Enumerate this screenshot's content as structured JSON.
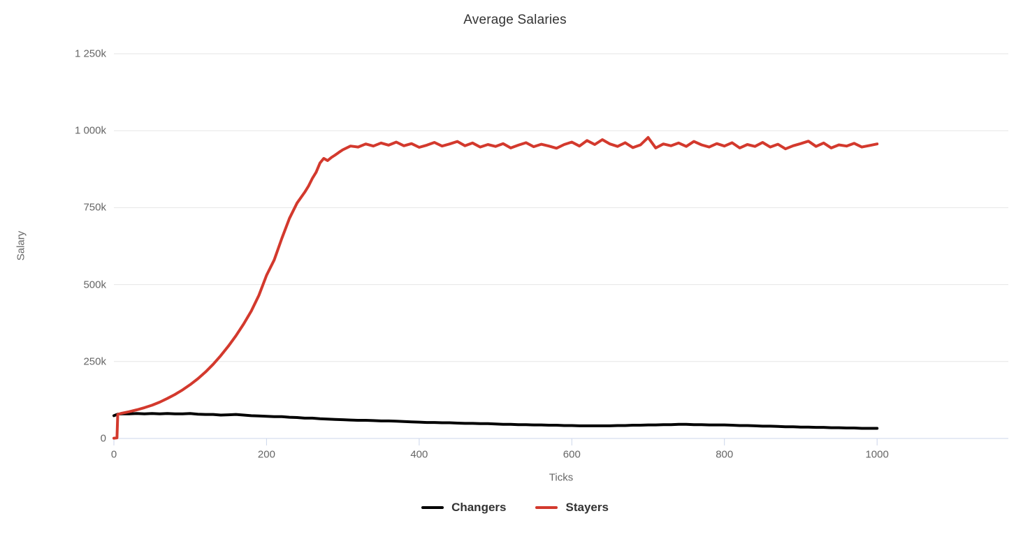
{
  "page_title": "Average Salaries",
  "colors": {
    "background": "#ffffff",
    "title_text": "#333333",
    "axis_label_text": "#666666",
    "gridline": "#e6e6e6",
    "axis_line": "#ccd6eb",
    "legend_text": "#333333",
    "series_changers": "#000000",
    "series_stayers": "#d3392d"
  },
  "chart_data": {
    "type": "line",
    "title": "Average Salaries",
    "xlabel": "Ticks",
    "ylabel": "Salary",
    "value_unit": "k (values stored in thousands)",
    "xlim": [
      0,
      1172
    ],
    "ylim_k": [
      0,
      1250
    ],
    "grid": true,
    "legend_position": "bottom-center",
    "x_ticks": [
      {
        "value": 0,
        "label": "0"
      },
      {
        "value": 200,
        "label": "200"
      },
      {
        "value": 400,
        "label": "400"
      },
      {
        "value": 600,
        "label": "600"
      },
      {
        "value": 800,
        "label": "800"
      },
      {
        "value": 1000,
        "label": "1000"
      }
    ],
    "y_ticks": [
      {
        "value_k": 0,
        "label": "0"
      },
      {
        "value_k": 250,
        "label": "250k"
      },
      {
        "value_k": 500,
        "label": "500k"
      },
      {
        "value_k": 750,
        "label": "750k"
      },
      {
        "value_k": 1000,
        "label": "1 000k"
      },
      {
        "value_k": 1250,
        "label": "1 250k"
      }
    ],
    "series": [
      {
        "name": "Changers",
        "color": "#000000",
        "line_width": 4,
        "x": [
          0,
          5,
          10,
          20,
          30,
          40,
          50,
          60,
          70,
          80,
          90,
          100,
          110,
          120,
          130,
          140,
          150,
          160,
          170,
          180,
          190,
          200,
          210,
          220,
          230,
          240,
          250,
          260,
          270,
          280,
          290,
          300,
          310,
          320,
          330,
          340,
          350,
          360,
          370,
          380,
          390,
          400,
          410,
          420,
          430,
          440,
          450,
          460,
          470,
          480,
          490,
          500,
          510,
          520,
          530,
          540,
          550,
          560,
          570,
          580,
          590,
          600,
          610,
          620,
          630,
          640,
          650,
          660,
          670,
          680,
          690,
          700,
          710,
          720,
          730,
          740,
          750,
          760,
          770,
          780,
          790,
          800,
          810,
          820,
          830,
          840,
          850,
          860,
          870,
          880,
          890,
          900,
          910,
          920,
          930,
          940,
          950,
          960,
          970,
          980,
          990,
          1000
        ],
        "values_k": [
          74,
          79,
          80,
          80,
          81,
          80,
          81,
          80,
          81,
          80,
          80,
          81,
          79,
          78,
          78,
          76,
          77,
          78,
          76,
          74,
          73,
          72,
          71,
          71,
          69,
          68,
          66,
          66,
          64,
          63,
          62,
          61,
          60,
          59,
          59,
          58,
          57,
          57,
          56,
          55,
          54,
          53,
          52,
          52,
          51,
          51,
          50,
          49,
          49,
          48,
          48,
          47,
          46,
          46,
          45,
          45,
          44,
          44,
          43,
          43,
          42,
          42,
          41,
          41,
          41,
          41,
          41,
          42,
          42,
          43,
          43,
          44,
          44,
          45,
          45,
          46,
          46,
          45,
          45,
          44,
          44,
          44,
          43,
          42,
          42,
          41,
          40,
          40,
          39,
          38,
          38,
          37,
          37,
          36,
          36,
          35,
          35,
          34,
          34,
          33,
          33,
          33
        ]
      },
      {
        "name": "Stayers",
        "color": "#d3392d",
        "line_width": 4,
        "x": [
          0,
          4,
          5,
          10,
          20,
          30,
          40,
          50,
          60,
          70,
          80,
          90,
          100,
          110,
          120,
          130,
          140,
          150,
          160,
          170,
          180,
          190,
          200,
          210,
          220,
          230,
          240,
          250,
          255,
          260,
          265,
          270,
          275,
          280,
          285,
          290,
          295,
          300,
          310,
          320,
          330,
          340,
          350,
          360,
          370,
          380,
          390,
          400,
          410,
          420,
          430,
          440,
          450,
          460,
          470,
          480,
          490,
          500,
          510,
          520,
          530,
          540,
          550,
          560,
          570,
          580,
          590,
          600,
          610,
          620,
          630,
          640,
          650,
          660,
          670,
          680,
          690,
          700,
          710,
          720,
          730,
          740,
          750,
          760,
          770,
          780,
          790,
          800,
          810,
          820,
          830,
          840,
          850,
          860,
          870,
          880,
          890,
          900,
          910,
          920,
          930,
          940,
          950,
          960,
          970,
          980,
          990,
          1000
        ],
        "values_k": [
          1,
          2,
          78,
          82,
          87,
          93,
          100,
          108,
          118,
          130,
          143,
          158,
          175,
          194,
          216,
          241,
          269,
          300,
          334,
          372,
          414,
          465,
          530,
          580,
          650,
          715,
          765,
          800,
          820,
          845,
          865,
          895,
          910,
          903,
          913,
          921,
          930,
          938,
          950,
          947,
          957,
          950,
          960,
          953,
          963,
          951,
          958,
          946,
          953,
          962,
          950,
          957,
          965,
          951,
          960,
          947,
          955,
          949,
          958,
          944,
          953,
          961,
          948,
          956,
          950,
          943,
          955,
          963,
          950,
          968,
          955,
          971,
          957,
          949,
          961,
          945,
          954,
          978,
          944,
          957,
          951,
          960,
          949,
          965,
          954,
          947,
          958,
          950,
          961,
          944,
          955,
          949,
          962,
          947,
          956,
          941,
          951,
          958,
          966,
          949,
          960,
          944,
          954,
          950,
          959,
          947,
          952,
          957
        ]
      }
    ]
  },
  "legend": {
    "items": [
      {
        "label": "Changers",
        "color": "#000000"
      },
      {
        "label": "Stayers",
        "color": "#d3392d"
      }
    ]
  }
}
